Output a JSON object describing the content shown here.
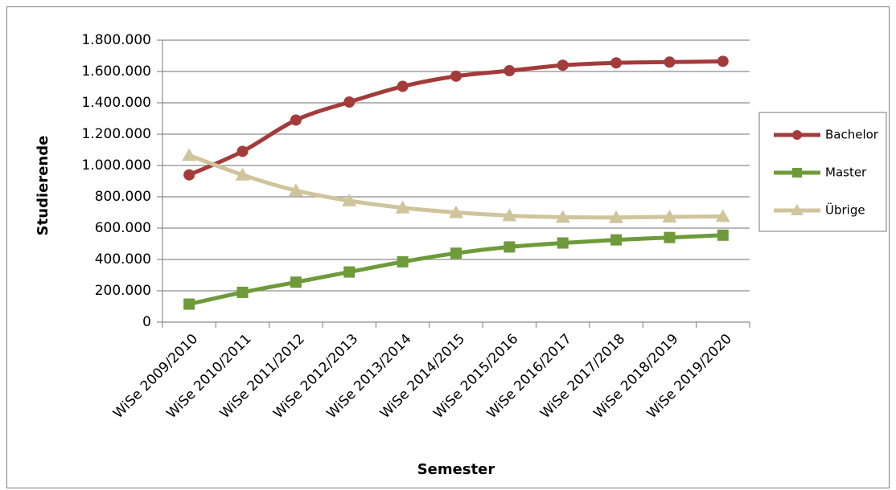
{
  "chart_data": {
    "type": "line",
    "xlabel": "Semester",
    "ylabel": "Studierende",
    "ylim": [
      0,
      1800000
    ],
    "yticks": [
      0,
      200000,
      400000,
      600000,
      800000,
      1000000,
      1200000,
      1400000,
      1600000,
      1800000
    ],
    "ytick_labels": [
      "0",
      "200.000",
      "400.000",
      "600.000",
      "800.000",
      "1.000.000",
      "1.200.000",
      "1.400.000",
      "1.600.000",
      "1.800.000"
    ],
    "categories": [
      "WiSe 2009/2010",
      "WiSe 2010/2011",
      "WiSe 2011/2012",
      "WiSe 2012/2013",
      "WiSe 2013/2014",
      "WiSe 2014/2015",
      "WiSe 2015/2016",
      "WiSe 2016/2017",
      "WiSe 2017/2018",
      "WiSe 2018/2019",
      "WiSe 2019/2020"
    ],
    "grid": true,
    "legend_position": "right",
    "series": [
      {
        "name": "Bachelor",
        "color": "#a33b3b",
        "marker": "circle",
        "values": [
          940000,
          1090000,
          1290000,
          1405000,
          1505000,
          1570000,
          1605000,
          1640000,
          1655000,
          1660000,
          1665000
        ]
      },
      {
        "name": "Master",
        "color": "#6e9a3a",
        "marker": "square",
        "values": [
          115000,
          190000,
          255000,
          320000,
          385000,
          440000,
          480000,
          505000,
          525000,
          540000,
          555000
        ]
      },
      {
        "name": "Übrige",
        "color": "#cfc49c",
        "marker": "triangle",
        "values": [
          1065000,
          940000,
          840000,
          775000,
          730000,
          700000,
          680000,
          670000,
          668000,
          672000,
          675000
        ]
      }
    ]
  }
}
